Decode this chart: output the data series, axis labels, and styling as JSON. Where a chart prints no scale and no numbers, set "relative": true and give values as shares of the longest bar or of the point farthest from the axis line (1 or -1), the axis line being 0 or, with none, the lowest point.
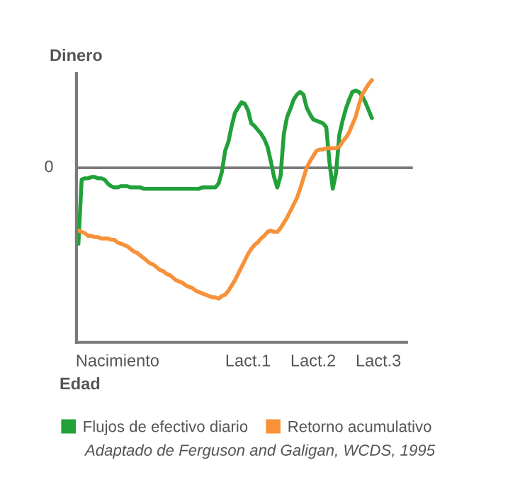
{
  "chart_data": {
    "type": "line",
    "relative": true,
    "xlabel": "Edad",
    "ylabel": "Dinero",
    "categories": [
      null,
      null,
      null,
      null,
      null,
      null,
      null,
      null,
      null,
      null,
      null,
      null,
      "Nacimiento",
      null,
      null,
      null,
      null,
      null,
      null,
      null,
      null,
      null,
      null,
      null,
      null,
      null,
      null,
      null,
      null,
      null,
      null,
      null,
      null,
      null,
      null,
      null,
      null,
      null,
      null,
      null,
      null,
      null,
      null,
      null,
      null,
      null,
      null,
      null,
      null,
      null,
      null,
      null,
      "Lact.1",
      null,
      null,
      null,
      null,
      null,
      null,
      null,
      null,
      null,
      null,
      null,
      null,
      null,
      null,
      null,
      null,
      null,
      null,
      null,
      "Lact.2",
      null,
      null,
      null,
      null,
      null,
      null,
      null,
      null,
      null,
      null,
      null,
      null,
      null,
      null,
      null,
      null,
      null,
      null,
      null,
      "Lact.3"
    ],
    "tick_labels": "x",
    "grid": false,
    "legend": "bottom",
    "marker": "none",
    "line_style": "solid",
    "ref_lines": [
      {
        "axis": "y",
        "value": 0,
        "label": "0",
        "color": "#7a7a7a"
      }
    ],
    "annotations": [
      "Adaptado de Ferguson and Galigan, WCDS, 1995"
    ],
    "series": [
      {
        "name": "Flujos de efectivo diario",
        "color": "#22a03a",
        "values": [
          -0.58,
          -0.09,
          -0.08,
          -0.08,
          -0.07,
          -0.07,
          -0.08,
          -0.08,
          -0.09,
          -0.12,
          -0.14,
          -0.15,
          -0.15,
          -0.14,
          -0.14,
          -0.14,
          -0.15,
          -0.15,
          -0.15,
          -0.15,
          -0.16,
          -0.16,
          -0.16,
          -0.16,
          -0.16,
          -0.16,
          -0.16,
          -0.16,
          -0.16,
          -0.16,
          -0.16,
          -0.16,
          -0.16,
          -0.16,
          -0.16,
          -0.16,
          -0.16,
          -0.16,
          -0.15,
          -0.15,
          -0.15,
          -0.15,
          -0.15,
          -0.12,
          -0.03,
          0.13,
          0.2,
          0.32,
          0.42,
          0.46,
          0.5,
          0.49,
          0.44,
          0.34,
          0.32,
          0.29,
          0.26,
          0.22,
          0.16,
          0.05,
          -0.07,
          -0.15,
          -0.06,
          0.26,
          0.39,
          0.45,
          0.52,
          0.56,
          0.58,
          0.56,
          0.46,
          0.41,
          0.37,
          0.36,
          0.35,
          0.34,
          0.31,
          0.04,
          -0.16,
          -0.04,
          0.25,
          0.36,
          0.45,
          0.52,
          0.58,
          0.59,
          0.58,
          0.55,
          0.5,
          0.44,
          0.38,
          null,
          null
        ]
      },
      {
        "name": "Retorno acumulativo",
        "color": "#f7923a",
        "values": [
          -0.48,
          -0.49,
          -0.5,
          -0.52,
          -0.52,
          -0.53,
          -0.53,
          -0.54,
          -0.54,
          -0.54,
          -0.55,
          -0.55,
          -0.57,
          -0.58,
          -0.59,
          -0.6,
          -0.62,
          -0.64,
          -0.65,
          -0.67,
          -0.69,
          -0.71,
          -0.73,
          -0.74,
          -0.76,
          -0.78,
          -0.79,
          -0.81,
          -0.82,
          -0.84,
          -0.86,
          -0.87,
          -0.88,
          -0.9,
          -0.91,
          -0.92,
          -0.94,
          -0.95,
          -0.96,
          -0.97,
          -0.98,
          -0.99,
          -0.99,
          -1.0,
          -0.98,
          -0.97,
          -0.94,
          -0.9,
          -0.86,
          -0.81,
          -0.76,
          -0.71,
          -0.66,
          -0.62,
          -0.59,
          -0.57,
          -0.54,
          -0.52,
          -0.49,
          -0.48,
          -0.49,
          -0.49,
          -0.46,
          -0.42,
          -0.38,
          -0.33,
          -0.28,
          -0.23,
          -0.16,
          -0.08,
          0.0,
          0.05,
          0.09,
          0.13,
          0.14,
          0.14,
          0.15,
          0.15,
          0.15,
          0.15,
          0.16,
          0.2,
          0.23,
          0.27,
          0.33,
          0.39,
          0.48,
          0.56,
          0.6,
          0.64,
          0.67,
          null,
          null
        ]
      }
    ]
  }
}
